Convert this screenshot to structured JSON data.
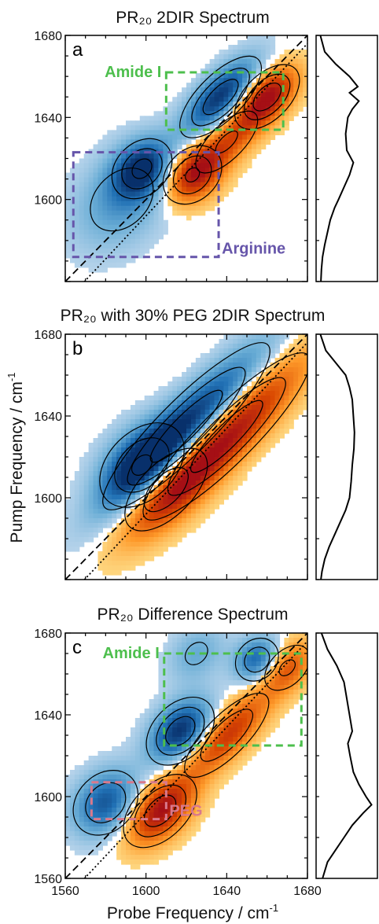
{
  "chart_data": {
    "type": "heatmap",
    "ylabel": "Pump Frequency / cm",
    "ylabel_sup": "-1",
    "xlabel": "Probe Frequency / cm",
    "xlabel_sup": "-1",
    "xlim": [
      1560,
      1680
    ],
    "ylim": [
      1560,
      1680
    ],
    "x_ticks": [
      1560,
      1600,
      1640,
      1680
    ],
    "colors": {
      "neg_dark": "#08306b",
      "neg": "#2171b5",
      "neg_light": "#9ecae1",
      "pos_light": "#fee391",
      "pos": "#f16913",
      "pos_dark": "#a50f15",
      "amide_box": "#4dbf4d",
      "arginine_box": "#6655aa",
      "peg_box": "#d9798c"
    },
    "panels": [
      {
        "id": "a",
        "letter": "a",
        "title": "PR₂₀ 2DIR Spectrum",
        "y_ticks": [
          1600,
          1640,
          1680
        ],
        "negative_peaks": [
          {
            "x": 1637,
            "y": 1650,
            "amp": 1.0,
            "sx": 12,
            "sy": 5
          },
          {
            "x": 1598,
            "y": 1615,
            "amp": 0.9,
            "sx": 8,
            "sy": 6
          },
          {
            "x": 1588,
            "y": 1600,
            "amp": 0.45,
            "sx": 14,
            "sy": 10
          }
        ],
        "positive_peaks": [
          {
            "x": 1660,
            "y": 1650,
            "amp": 1.0,
            "sx": 9,
            "sy": 5
          },
          {
            "x": 1623,
            "y": 1612,
            "amp": 0.85,
            "sx": 8,
            "sy": 6
          },
          {
            "x": 1640,
            "y": 1628,
            "amp": 0.6,
            "sx": 12,
            "sy": 5
          }
        ],
        "boxes": [
          {
            "label": "Amide I",
            "color": "amide_box",
            "x0": 1610,
            "x1": 1668,
            "y0": 1634,
            "y1": 1662,
            "label_pos": "upper-left"
          },
          {
            "label": "Arginine",
            "color": "arginine_box",
            "x0": 1564,
            "x1": 1636,
            "y0": 1572,
            "y1": 1623,
            "label_pos": "lower-right"
          }
        ],
        "spectrum_1d": [
          [
            1680,
            0.02
          ],
          [
            1672,
            0.1
          ],
          [
            1666,
            0.3
          ],
          [
            1660,
            0.55
          ],
          [
            1655,
            0.7
          ],
          [
            1652,
            0.55
          ],
          [
            1648,
            0.72
          ],
          [
            1644,
            0.6
          ],
          [
            1640,
            0.52
          ],
          [
            1632,
            0.48
          ],
          [
            1624,
            0.5
          ],
          [
            1618,
            0.62
          ],
          [
            1612,
            0.55
          ],
          [
            1606,
            0.45
          ],
          [
            1600,
            0.35
          ],
          [
            1596,
            0.28
          ],
          [
            1590,
            0.2
          ],
          [
            1584,
            0.15
          ],
          [
            1578,
            0.1
          ],
          [
            1572,
            0.06
          ],
          [
            1566,
            0.04
          ],
          [
            1560,
            0.03
          ]
        ]
      },
      {
        "id": "b",
        "letter": "b",
        "title": "PR₂₀ with 30% PEG 2DIR Spectrum",
        "y_ticks": [
          1600,
          1640,
          1680
        ],
        "negative_peaks": [
          {
            "x": 1620,
            "y": 1635,
            "amp": 1.0,
            "sx": 26,
            "sy": 6
          },
          {
            "x": 1598,
            "y": 1616,
            "amp": 0.85,
            "sx": 12,
            "sy": 8
          }
        ],
        "positive_peaks": [
          {
            "x": 1640,
            "y": 1630,
            "amp": 1.0,
            "sx": 26,
            "sy": 6
          },
          {
            "x": 1610,
            "y": 1604,
            "amp": 0.7,
            "sx": 14,
            "sy": 7
          }
        ],
        "boxes": [],
        "spectrum_1d": [
          [
            1680,
            0.02
          ],
          [
            1672,
            0.12
          ],
          [
            1666,
            0.3
          ],
          [
            1660,
            0.48
          ],
          [
            1654,
            0.55
          ],
          [
            1648,
            0.6
          ],
          [
            1640,
            0.62
          ],
          [
            1632,
            0.64
          ],
          [
            1624,
            0.63
          ],
          [
            1616,
            0.6
          ],
          [
            1608,
            0.58
          ],
          [
            1600,
            0.55
          ],
          [
            1594,
            0.48
          ],
          [
            1588,
            0.38
          ],
          [
            1582,
            0.28
          ],
          [
            1576,
            0.18
          ],
          [
            1570,
            0.1
          ],
          [
            1564,
            0.05
          ],
          [
            1560,
            0.03
          ]
        ]
      },
      {
        "id": "c",
        "letter": "c",
        "title": "PR₂₀ Difference Spectrum",
        "y_ticks": [
          1560,
          1600,
          1640,
          1680
        ],
        "negative_peaks": [
          {
            "x": 1617,
            "y": 1632,
            "amp": 1.0,
            "sx": 9,
            "sy": 6
          },
          {
            "x": 1580,
            "y": 1597,
            "amp": 0.8,
            "sx": 9,
            "sy": 7
          },
          {
            "x": 1655,
            "y": 1667,
            "amp": 0.75,
            "sx": 6,
            "sy": 5
          },
          {
            "x": 1625,
            "y": 1670,
            "amp": 0.35,
            "sx": 8,
            "sy": 6
          }
        ],
        "positive_peaks": [
          {
            "x": 1607,
            "y": 1593,
            "amp": 1.0,
            "sx": 10,
            "sy": 6
          },
          {
            "x": 1640,
            "y": 1630,
            "amp": 0.8,
            "sx": 14,
            "sy": 5
          },
          {
            "x": 1670,
            "y": 1663,
            "amp": 0.6,
            "sx": 8,
            "sy": 5
          }
        ],
        "boxes": [
          {
            "label": "Amide I",
            "color": "amide_box",
            "x0": 1609,
            "x1": 1677,
            "y0": 1625,
            "y1": 1670,
            "label_pos": "upper-left"
          },
          {
            "label": "PEG",
            "color": "peg_box",
            "x0": 1573,
            "x1": 1610,
            "y0": 1589,
            "y1": 1607,
            "label_pos": "lower-right"
          }
        ],
        "spectrum_1d": [
          [
            1680,
            0.04
          ],
          [
            1672,
            0.15
          ],
          [
            1664,
            0.32
          ],
          [
            1656,
            0.45
          ],
          [
            1648,
            0.5
          ],
          [
            1640,
            0.55
          ],
          [
            1632,
            0.6
          ],
          [
            1626,
            0.52
          ],
          [
            1620,
            0.56
          ],
          [
            1612,
            0.62
          ],
          [
            1606,
            0.72
          ],
          [
            1600,
            0.85
          ],
          [
            1596,
            0.95
          ],
          [
            1592,
            0.8
          ],
          [
            1586,
            0.6
          ],
          [
            1580,
            0.45
          ],
          [
            1574,
            0.3
          ],
          [
            1568,
            0.15
          ],
          [
            1560,
            0.06
          ]
        ]
      }
    ]
  }
}
